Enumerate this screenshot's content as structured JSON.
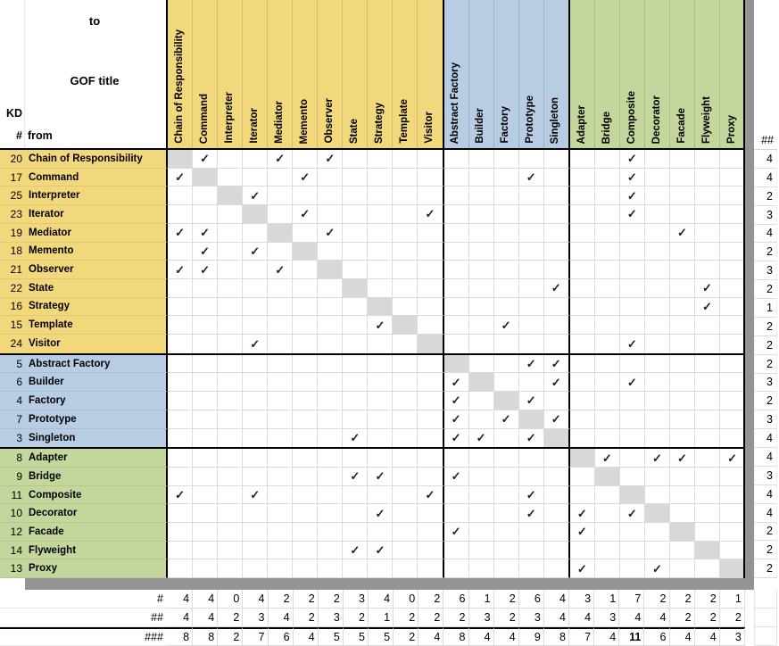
{
  "corner": {
    "to_label": "to",
    "gof_title": "GOF title",
    "kd_label": "KD",
    "hash_label": "#",
    "from_label": "from"
  },
  "check_glyph": "✓",
  "colors": {
    "behavioral": "#F1D87C",
    "creational": "#B8CCE4",
    "structural": "#C3D69B",
    "diagonal": "#D8D8D8",
    "gray_bar": "#949494",
    "check": "#1C1C38"
  },
  "groups": [
    {
      "id": "behavioral",
      "patterns": [
        "Chain of Responsibility",
        "Command",
        "Interpreter",
        "Iterator",
        "Mediator",
        "Memento",
        "Observer",
        "State",
        "Strategy",
        "Template",
        "Visitor"
      ]
    },
    {
      "id": "creational",
      "patterns": [
        "Abstract Factory",
        "Builder",
        "Factory",
        "Prototype",
        "Singleton"
      ]
    },
    {
      "id": "structural",
      "patterns": [
        "Adapter",
        "Bridge",
        "Composite",
        "Decorator",
        "Facade",
        "Flyweight",
        "Proxy"
      ]
    }
  ],
  "rows": [
    {
      "kd": 20,
      "name": "Chain of Responsibility",
      "to": [
        "Command",
        "Mediator",
        "Observer",
        "Composite"
      ]
    },
    {
      "kd": 17,
      "name": "Command",
      "to": [
        "Chain of Responsibility",
        "Memento",
        "Prototype",
        "Composite"
      ]
    },
    {
      "kd": 25,
      "name": "Interpreter",
      "to": [
        "Iterator",
        "Composite"
      ]
    },
    {
      "kd": 23,
      "name": "Iterator",
      "to": [
        "Memento",
        "Visitor",
        "Composite"
      ]
    },
    {
      "kd": 19,
      "name": "Mediator",
      "to": [
        "Chain of Responsibility",
        "Command",
        "Observer",
        "Facade"
      ]
    },
    {
      "kd": 18,
      "name": "Memento",
      "to": [
        "Command",
        "Iterator"
      ]
    },
    {
      "kd": 21,
      "name": "Observer",
      "to": [
        "Chain of Responsibility",
        "Command",
        "Mediator"
      ]
    },
    {
      "kd": 22,
      "name": "State",
      "to": [
        "Singleton",
        "Flyweight"
      ]
    },
    {
      "kd": 16,
      "name": "Strategy",
      "to": [
        "Flyweight"
      ]
    },
    {
      "kd": 15,
      "name": "Template",
      "to": [
        "Strategy",
        "Factory"
      ]
    },
    {
      "kd": 24,
      "name": "Visitor",
      "to": [
        "Iterator",
        "Composite"
      ]
    },
    {
      "kd": 5,
      "name": "Abstract Factory",
      "to": [
        "Prototype",
        "Singleton"
      ]
    },
    {
      "kd": 6,
      "name": "Builder",
      "to": [
        "Abstract Factory",
        "Singleton",
        "Composite"
      ]
    },
    {
      "kd": 4,
      "name": "Factory",
      "to": [
        "Abstract Factory",
        "Prototype"
      ]
    },
    {
      "kd": 7,
      "name": "Prototype",
      "to": [
        "Abstract Factory",
        "Factory",
        "Singleton"
      ]
    },
    {
      "kd": 3,
      "name": "Singleton",
      "to": [
        "State",
        "Abstract Factory",
        "Builder",
        "Prototype"
      ]
    },
    {
      "kd": 8,
      "name": "Adapter",
      "to": [
        "Bridge",
        "Decorator",
        "Facade",
        "Proxy"
      ]
    },
    {
      "kd": 9,
      "name": "Bridge",
      "to": [
        "State",
        "Strategy",
        "Abstract Factory"
      ]
    },
    {
      "kd": 11,
      "name": "Composite",
      "to": [
        "Chain of Responsibility",
        "Iterator",
        "Visitor",
        "Prototype"
      ]
    },
    {
      "kd": 10,
      "name": "Decorator",
      "to": [
        "Strategy",
        "Prototype",
        "Adapter",
        "Composite"
      ]
    },
    {
      "kd": 12,
      "name": "Facade",
      "to": [
        "Abstract Factory",
        "Adapter"
      ]
    },
    {
      "kd": 14,
      "name": "Flyweight",
      "to": [
        "State",
        "Strategy"
      ]
    },
    {
      "kd": 13,
      "name": "Proxy",
      "to": [
        "Adapter",
        "Decorator"
      ]
    }
  ],
  "right_totals": {
    "header": "##",
    "values": [
      4,
      4,
      2,
      3,
      4,
      2,
      3,
      2,
      1,
      2,
      2,
      2,
      3,
      2,
      3,
      4,
      4,
      3,
      4,
      4,
      2,
      2,
      2
    ]
  },
  "bottom_totals": {
    "rows": [
      {
        "label": "#",
        "values": [
          4,
          4,
          0,
          4,
          2,
          2,
          2,
          3,
          4,
          0,
          2,
          6,
          1,
          2,
          6,
          4,
          3,
          1,
          7,
          2,
          2,
          2,
          1
        ]
      },
      {
        "label": "##",
        "values": [
          4,
          4,
          2,
          3,
          4,
          2,
          3,
          2,
          1,
          2,
          2,
          2,
          3,
          2,
          3,
          4,
          4,
          3,
          4,
          4,
          2,
          2,
          2
        ]
      },
      {
        "label": "###",
        "values": [
          8,
          8,
          2,
          7,
          6,
          4,
          5,
          5,
          5,
          2,
          4,
          8,
          4,
          4,
          9,
          8,
          7,
          4,
          11,
          6,
          4,
          4,
          3
        ],
        "bold_value_index": 18,
        "top_border": true
      }
    ]
  }
}
